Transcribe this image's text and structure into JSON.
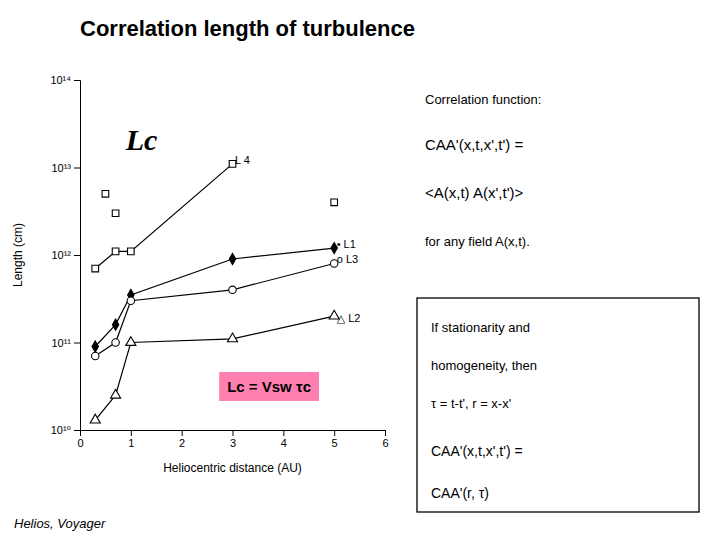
{
  "chart_data": {
    "type": "line",
    "title": "Correlation length of turbulence",
    "x_label": "Heliocentric distance (AU)",
    "y_label": "Length (cm)",
    "caption": "Helios, Voyager",
    "log": "y",
    "grid": false,
    "xlim": [
      0,
      6
    ],
    "xticks": [
      0,
      1,
      2,
      3,
      4,
      5,
      6
    ],
    "ylim": [
      10000000000.0,
      100000000000000.0
    ],
    "yticks": [
      {
        "value": 10000000000.0,
        "label": "10¹⁰"
      },
      {
        "value": 100000000000.0,
        "label": "10¹¹"
      },
      {
        "value": 1000000000000.0,
        "label": "10¹²"
      },
      {
        "value": 10000000000000.0,
        "label": "10¹³"
      },
      {
        "value": 100000000000000.0,
        "label": "10¹⁴"
      }
    ],
    "series": [
      {
        "x": [
          0.3,
          0.7,
          1.0,
          3.0
        ],
        "values": [
          700000000000.0,
          1100000000000.0,
          1100000000000.0,
          11000000000000.0
        ],
        "color": "#000000",
        "marker": "square-open",
        "line_style": "solid"
      },
      {
        "x": [
          0.5,
          0.7,
          5.0
        ],
        "values": [
          5000000000000.0,
          3000000000000.0,
          4000000000000.0
        ],
        "color": "#000000",
        "marker": "square-open",
        "line_style": "none",
        "type": "scatter"
      },
      {
        "x": [
          0.3,
          0.7,
          1.0,
          3.0,
          5.0
        ],
        "values": [
          90000000000.0,
          160000000000.0,
          350000000000.0,
          900000000000.0,
          1200000000000.0
        ],
        "color": "#000000",
        "marker": "diamond",
        "line_style": "solid"
      },
      {
        "x": [
          0.3,
          0.7,
          1.0,
          3.0,
          5.0
        ],
        "values": [
          70000000000.0,
          100000000000.0,
          300000000000.0,
          400000000000.0,
          800000000000.0
        ],
        "color": "#000000",
        "marker": "circle-open",
        "line_style": "solid"
      },
      {
        "x": [
          0.3,
          0.7,
          1.0,
          3.0,
          5.0
        ],
        "values": [
          13000000000.0,
          25000000000.0,
          100000000000.0,
          110000000000.0,
          200000000000.0
        ],
        "color": "#000000",
        "marker": "triangle-open",
        "line_style": "solid"
      }
    ],
    "annotations": [
      {
        "text": "L 4",
        "x": 3.05,
        "y": 11000000000000.0
      },
      {
        "text": "• L1",
        "x": 5.05,
        "y": 1200000000000.0
      },
      {
        "text": "o L3",
        "x": 5.05,
        "y": 800000000000.0
      },
      {
        "text": "△ L2",
        "x": 5.05,
        "y": 170000000000.0
      },
      {
        "text": "Lc"
      },
      {
        "text": "Lc = Vsw τc",
        "color": "#ff80b0"
      }
    ],
    "notes": [
      "Correlation function:",
      "CAA'(x,t,x',t')  =",
      "<A(x,t) A(x',t')>",
      "for any field A(x,t)."
    ],
    "box_notes": [
      "If stationarity and",
      "homogeneity, then",
      "τ = t-t',  r = x-x'",
      "CAA'(x,t,x',t') =",
      "CAA'(r, τ)"
    ]
  }
}
